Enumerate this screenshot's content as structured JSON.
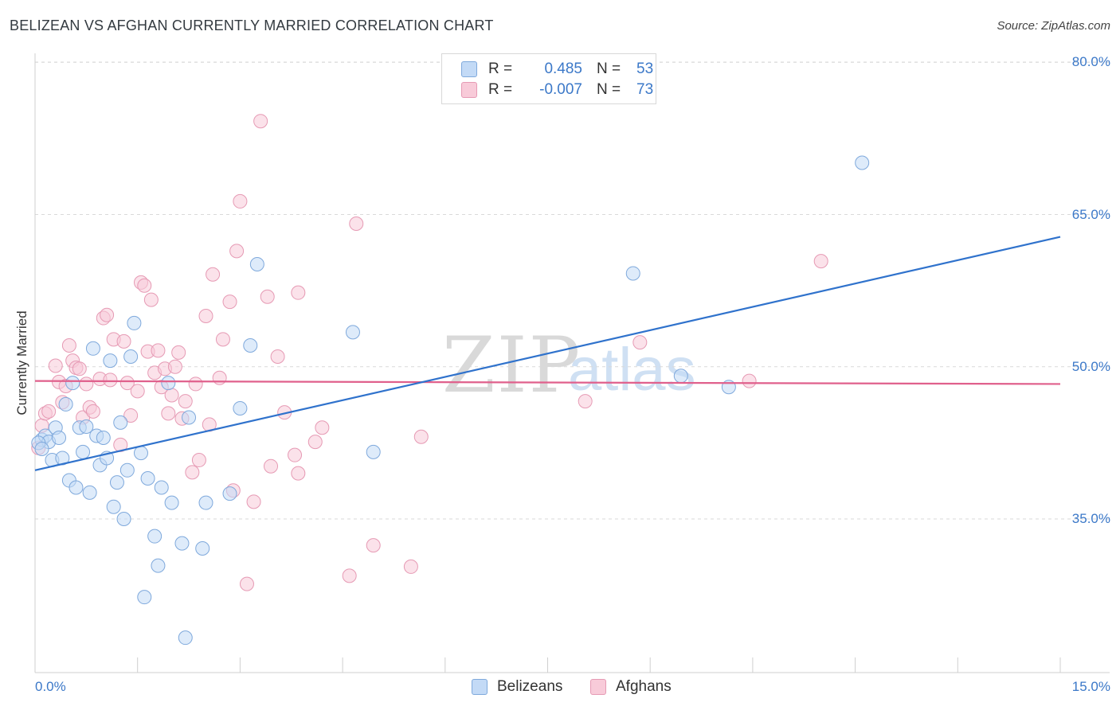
{
  "title": "BELIZEAN VS AFGHAN CURRENTLY MARRIED CORRELATION CHART",
  "source": "Source: ZipAtlas.com",
  "watermark": {
    "zip": "ZIP",
    "atlas": "atlas"
  },
  "legend_top": {
    "rows": [
      {
        "r_label": "R =",
        "r_value": "0.485",
        "n_label": "N =",
        "n_value": "53"
      },
      {
        "r_label": "R =",
        "r_value": "-0.007",
        "n_label": "N =",
        "n_value": "73"
      }
    ]
  },
  "legend_bottom": {
    "series1": "Belizeans",
    "series2": "Afghans"
  },
  "colors": {
    "blue_fill": "#c3daf6",
    "blue_stroke": "#7fa9dc",
    "blue_line": "#2f72cc",
    "pink_fill": "#f8cbd9",
    "pink_stroke": "#e69ab4",
    "pink_line": "#e0608c",
    "grid": "#d9d9d9",
    "tick_label": "#3b78c8"
  },
  "chart_data": {
    "type": "scatter",
    "title": "BELIZEAN VS AFGHAN CURRENTLY MARRIED CORRELATION CHART",
    "xlabel": "",
    "ylabel": "Currently Married",
    "xlim": [
      0,
      15
    ],
    "ylim": [
      21.5,
      83
    ],
    "x_tick_labels": [
      "0.0%",
      "15.0%"
    ],
    "y_ticks": [
      35,
      50,
      65,
      80
    ],
    "y_tick_labels": [
      "35.0%",
      "50.0%",
      "65.0%",
      "80.0%"
    ],
    "grid": "horizontal dashed",
    "legend": "top-center and bottom",
    "series": [
      {
        "name": "Belizeans",
        "r": 0.485,
        "n": 53,
        "trend": {
          "x": [
            0,
            15
          ],
          "y": [
            39.8,
            62.8
          ]
        },
        "points": [
          [
            0.1,
            42.8
          ],
          [
            0.15,
            43.2
          ],
          [
            0.2,
            42.6
          ],
          [
            0.25,
            40.8
          ],
          [
            0.3,
            44.0
          ],
          [
            0.35,
            43.0
          ],
          [
            0.4,
            41.0
          ],
          [
            0.45,
            46.3
          ],
          [
            0.5,
            38.8
          ],
          [
            0.55,
            48.4
          ],
          [
            0.6,
            38.1
          ],
          [
            0.65,
            44.0
          ],
          [
            0.7,
            41.6
          ],
          [
            0.75,
            44.1
          ],
          [
            0.8,
            37.6
          ],
          [
            0.85,
            51.8
          ],
          [
            0.9,
            43.2
          ],
          [
            0.95,
            40.3
          ],
          [
            1.0,
            43.0
          ],
          [
            1.05,
            41.0
          ],
          [
            1.1,
            50.6
          ],
          [
            1.15,
            36.2
          ],
          [
            1.2,
            38.6
          ],
          [
            1.25,
            44.5
          ],
          [
            1.3,
            35.0
          ],
          [
            1.35,
            39.8
          ],
          [
            1.4,
            51.0
          ],
          [
            1.45,
            54.3
          ],
          [
            1.55,
            41.5
          ],
          [
            1.65,
            39.0
          ],
          [
            1.75,
            33.3
          ],
          [
            1.8,
            30.4
          ],
          [
            1.85,
            38.1
          ],
          [
            1.6,
            27.3
          ],
          [
            2.0,
            36.6
          ],
          [
            2.15,
            32.6
          ],
          [
            1.95,
            48.4
          ],
          [
            2.25,
            45.0
          ],
          [
            2.2,
            23.3
          ],
          [
            2.45,
            32.1
          ],
          [
            2.5,
            36.6
          ],
          [
            2.85,
            37.5
          ],
          [
            3.0,
            45.9
          ],
          [
            3.15,
            52.1
          ],
          [
            3.25,
            60.1
          ],
          [
            4.65,
            53.4
          ],
          [
            4.95,
            41.6
          ],
          [
            8.75,
            59.2
          ],
          [
            9.45,
            49.1
          ],
          [
            10.15,
            48.0
          ],
          [
            12.1,
            70.1
          ],
          [
            0.05,
            42.5
          ],
          [
            0.1,
            41.9
          ]
        ]
      },
      {
        "name": "Afghans",
        "r": -0.007,
        "n": 73,
        "trend": {
          "x": [
            0,
            15
          ],
          "y": [
            48.6,
            48.3
          ]
        },
        "points": [
          [
            0.05,
            42.0
          ],
          [
            0.1,
            44.2
          ],
          [
            0.15,
            45.4
          ],
          [
            0.2,
            45.6
          ],
          [
            0.3,
            50.1
          ],
          [
            0.35,
            48.5
          ],
          [
            0.4,
            46.5
          ],
          [
            0.45,
            48.1
          ],
          [
            0.5,
            52.1
          ],
          [
            0.55,
            50.6
          ],
          [
            0.6,
            49.9
          ],
          [
            0.65,
            49.8
          ],
          [
            0.7,
            45.0
          ],
          [
            0.75,
            48.3
          ],
          [
            0.8,
            46.0
          ],
          [
            0.85,
            45.6
          ],
          [
            0.95,
            48.8
          ],
          [
            1.0,
            54.8
          ],
          [
            1.05,
            55.1
          ],
          [
            1.1,
            48.7
          ],
          [
            1.15,
            52.7
          ],
          [
            1.25,
            42.3
          ],
          [
            1.3,
            52.5
          ],
          [
            1.35,
            48.4
          ],
          [
            1.4,
            45.2
          ],
          [
            1.5,
            47.6
          ],
          [
            1.55,
            58.3
          ],
          [
            1.6,
            58.0
          ],
          [
            1.65,
            51.5
          ],
          [
            1.7,
            56.6
          ],
          [
            1.75,
            49.4
          ],
          [
            1.8,
            51.6
          ],
          [
            1.85,
            48.0
          ],
          [
            1.9,
            49.8
          ],
          [
            1.95,
            45.4
          ],
          [
            2.0,
            47.2
          ],
          [
            2.05,
            50.0
          ],
          [
            2.1,
            51.4
          ],
          [
            2.15,
            44.9
          ],
          [
            2.2,
            46.6
          ],
          [
            2.3,
            39.6
          ],
          [
            2.35,
            48.3
          ],
          [
            2.4,
            40.8
          ],
          [
            2.5,
            55.0
          ],
          [
            2.55,
            44.3
          ],
          [
            2.6,
            59.1
          ],
          [
            2.7,
            48.9
          ],
          [
            2.75,
            52.7
          ],
          [
            2.85,
            56.4
          ],
          [
            2.9,
            37.8
          ],
          [
            2.95,
            61.4
          ],
          [
            3.0,
            66.3
          ],
          [
            3.1,
            28.6
          ],
          [
            3.2,
            36.7
          ],
          [
            3.3,
            74.2
          ],
          [
            3.4,
            56.9
          ],
          [
            3.45,
            40.2
          ],
          [
            3.55,
            51.0
          ],
          [
            3.65,
            45.5
          ],
          [
            3.8,
            41.3
          ],
          [
            3.85,
            57.3
          ],
          [
            3.85,
            39.5
          ],
          [
            4.1,
            42.6
          ],
          [
            4.2,
            44.0
          ],
          [
            4.6,
            29.4
          ],
          [
            4.7,
            64.1
          ],
          [
            4.95,
            32.4
          ],
          [
            5.5,
            30.3
          ],
          [
            5.65,
            43.1
          ],
          [
            8.05,
            46.6
          ],
          [
            8.85,
            52.4
          ],
          [
            10.45,
            48.6
          ],
          [
            11.5,
            60.4
          ]
        ]
      }
    ]
  }
}
